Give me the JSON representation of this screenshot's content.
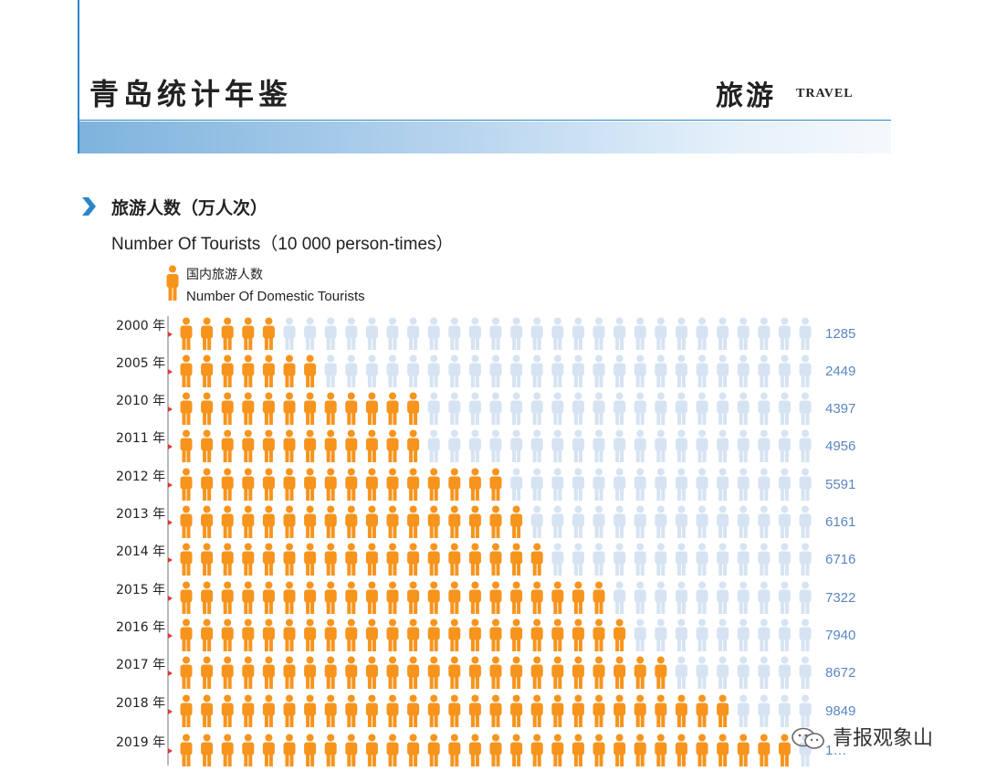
{
  "header": {
    "yearbook_title": "青岛统计年鉴",
    "section_zh": "旅游",
    "section_en": "TRAVEL"
  },
  "chart_header": {
    "title_zh": "旅游人数（万人次）",
    "title_en": "Number Of Tourists（10 000 person-times）"
  },
  "legend": {
    "label_zh": "国内旅游人数",
    "label_en": "Number Of Domestic Tourists"
  },
  "watermark": {
    "text": "青报观象山"
  },
  "colors": {
    "filled": "#f7941d",
    "empty": "#d6e3f2",
    "value_text": "#5b86c0",
    "accent_blue": "#2a86c8",
    "marker_red": "#e03a2f"
  },
  "chart_data": {
    "type": "pictogram",
    "title": "旅游人数（万人次）",
    "series": [
      {
        "name": "国内旅游人数",
        "values": [
          1285,
          2449,
          4397,
          4956,
          5591,
          6161,
          6716,
          7322,
          7940,
          8672,
          9849,
          11100
        ]
      }
    ],
    "categories": [
      "2000 年",
      "2005 年",
      "2010 年",
      "2011 年",
      "2012 年",
      "2013 年",
      "2014 年",
      "2015 年",
      "2016 年",
      "2017 年",
      "2018 年",
      "2019 年"
    ],
    "value_labels": [
      "1285",
      "2449",
      "4397",
      "4956",
      "5591",
      "6161",
      "6716",
      "7322",
      "7940",
      "8672",
      "9849",
      "1…"
    ],
    "icons_total": 31,
    "icons_filled": [
      5,
      7,
      12,
      12,
      16,
      17,
      18,
      21,
      22,
      24,
      27,
      30
    ]
  }
}
